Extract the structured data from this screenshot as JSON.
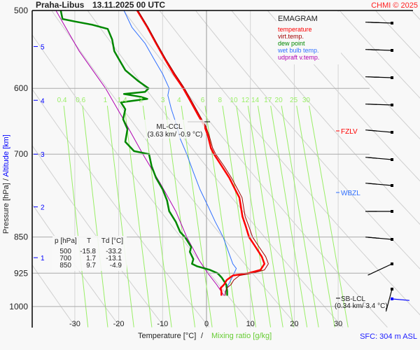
{
  "header": {
    "station": "Praha-Libus",
    "datetime": "13.11.2025 00 UTC",
    "copyright": "CHMI © 2025"
  },
  "footer": {
    "sfc": "SFC: 304 m ASL"
  },
  "colors": {
    "temperature": "#ff0000",
    "virt_temp": "#a00000",
    "dew_point": "#008800",
    "wet_bulb": "#3070ff",
    "parcel": "#b000b0",
    "mixing": "#99ee66",
    "altitude": "#0000ff"
  },
  "chart_data": {
    "type": "line",
    "title": "EMAGRAM",
    "xlabel": "Temperature [°C]",
    "xlabel_sep": "/",
    "xlabel2": "Mixing ratio [g/kg]",
    "ylabel": "Pressure [hPa]",
    "ylabel_sep": "/",
    "ylabel2": "Altitude [km]",
    "xlim": [
      -38,
      39
    ],
    "ylim": [
      1050,
      500
    ],
    "x_ticks": [
      "-30",
      "-20",
      "-10",
      "0",
      "10",
      "20",
      "30"
    ],
    "y_ticks": [
      "500",
      "600",
      "700",
      "850",
      "925",
      "1000"
    ],
    "altitude_ticks": [
      {
        "km": "1",
        "p": 892
      },
      {
        "km": "2",
        "p": 792
      },
      {
        "km": "3",
        "p": 700
      },
      {
        "km": "4",
        "p": 617
      },
      {
        "km": "5",
        "p": 544
      }
    ],
    "mixing_ratios": [
      "0.4",
      "0.6",
      "1",
      "1.4",
      "2",
      "3",
      "4",
      "6",
      "8",
      "10",
      "12",
      "14",
      "17",
      "20",
      "25",
      "30"
    ],
    "legend": [
      "temperature",
      "virt.temp.",
      "dew point",
      "wet bulb temp.",
      "udpraft v.temp."
    ],
    "series": [
      {
        "name": "temperature",
        "points": [
          [
            500,
            -15.8
          ],
          [
            520,
            -13.5
          ],
          [
            540,
            -11.5
          ],
          [
            560,
            -9.5
          ],
          [
            580,
            -7.5
          ],
          [
            600,
            -5.3
          ],
          [
            620,
            -3.5
          ],
          [
            640,
            -1.8
          ],
          [
            655,
            -0.5
          ],
          [
            670,
            0.3
          ],
          [
            690,
            1
          ],
          [
            700,
            1.7
          ],
          [
            720,
            3.5
          ],
          [
            740,
            5.2
          ],
          [
            760,
            6.5
          ],
          [
            775,
            7.5
          ],
          [
            790,
            7.8
          ],
          [
            810,
            8.2
          ],
          [
            830,
            9
          ],
          [
            850,
            9.7
          ],
          [
            870,
            11.2
          ],
          [
            890,
            12.6
          ],
          [
            905,
            13.2
          ],
          [
            918,
            12.3
          ],
          [
            925,
            9.5
          ],
          [
            930,
            6
          ],
          [
            940,
            4.6
          ],
          [
            950,
            4
          ],
          [
            958,
            3.2
          ],
          [
            965,
            3.4
          ],
          [
            975,
            3.4
          ]
        ]
      },
      {
        "name": "virt.temp.",
        "points": [
          [
            500,
            -15.6
          ],
          [
            520,
            -13.3
          ],
          [
            540,
            -11.3
          ],
          [
            560,
            -9.3
          ],
          [
            580,
            -7.2
          ],
          [
            600,
            -5
          ],
          [
            620,
            -3.2
          ],
          [
            640,
            -1.5
          ],
          [
            655,
            -0.2
          ],
          [
            670,
            0.6
          ],
          [
            690,
            1.4
          ],
          [
            700,
            2.1
          ],
          [
            720,
            4
          ],
          [
            740,
            5.7
          ],
          [
            760,
            7.1
          ],
          [
            775,
            8.1
          ],
          [
            790,
            8.4
          ],
          [
            810,
            8.8
          ],
          [
            830,
            9.7
          ],
          [
            850,
            10.5
          ],
          [
            870,
            12
          ],
          [
            890,
            13.5
          ],
          [
            905,
            14.1
          ],
          [
            918,
            13.2
          ],
          [
            925,
            10.5
          ],
          [
            930,
            7.5
          ],
          [
            940,
            6.2
          ],
          [
            950,
            5.6
          ],
          [
            958,
            4.6
          ],
          [
            965,
            4.4
          ],
          [
            975,
            4.2
          ]
        ]
      },
      {
        "name": "dew point",
        "points": [
          [
            500,
            -33.2
          ],
          [
            510,
            -32.8
          ],
          [
            513,
            -30
          ],
          [
            517,
            -26
          ],
          [
            522,
            -22.5
          ],
          [
            535,
            -21.5
          ],
          [
            550,
            -21
          ],
          [
            560,
            -20
          ],
          [
            575,
            -18.5
          ],
          [
            590,
            -15.5
          ],
          [
            600,
            -13.2
          ],
          [
            605,
            -14
          ],
          [
            608,
            -18.8
          ],
          [
            612,
            -15
          ],
          [
            615,
            -13.5
          ],
          [
            620,
            -19.5
          ],
          [
            630,
            -18.5
          ],
          [
            645,
            -19
          ],
          [
            660,
            -18
          ],
          [
            680,
            -18.5
          ],
          [
            695,
            -16.5
          ],
          [
            700,
            -13.1
          ],
          [
            720,
            -12.5
          ],
          [
            740,
            -11.5
          ],
          [
            760,
            -10
          ],
          [
            780,
            -9
          ],
          [
            800,
            -8.5
          ],
          [
            820,
            -7
          ],
          [
            840,
            -6
          ],
          [
            850,
            -4.9
          ],
          [
            870,
            -3.5
          ],
          [
            880,
            -3.8
          ],
          [
            895,
            -3
          ],
          [
            905,
            -3.3
          ],
          [
            910,
            -2.2
          ],
          [
            918,
            0.8
          ],
          [
            925,
            2.5
          ],
          [
            935,
            3.5
          ],
          [
            950,
            4.5
          ],
          [
            965,
            4.7
          ],
          [
            975,
            4.7
          ]
        ]
      },
      {
        "name": "wet bulb temp.",
        "points": [
          [
            500,
            -18.8
          ],
          [
            520,
            -17
          ],
          [
            540,
            -14
          ],
          [
            560,
            -12
          ],
          [
            580,
            -10
          ],
          [
            600,
            -8.5
          ],
          [
            610,
            -8.8
          ],
          [
            630,
            -8
          ],
          [
            650,
            -7
          ],
          [
            675,
            -6
          ],
          [
            700,
            -4.5
          ],
          [
            730,
            -3
          ],
          [
            760,
            -1.5
          ],
          [
            790,
            0.3
          ],
          [
            820,
            2
          ],
          [
            850,
            3.8
          ],
          [
            880,
            5
          ],
          [
            905,
            6
          ],
          [
            915,
            6.8
          ],
          [
            925,
            6.3
          ],
          [
            935,
            5.8
          ],
          [
            950,
            5
          ],
          [
            965,
            4.3
          ],
          [
            975,
            4.2
          ]
        ]
      },
      {
        "name": "udpraft v.temp.",
        "points": [
          [
            500,
            -34.3
          ],
          [
            550,
            -29
          ],
          [
            600,
            -23
          ],
          [
            650,
            -18.5
          ],
          [
            700,
            -14.5
          ],
          [
            750,
            -10.5
          ],
          [
            800,
            -7
          ],
          [
            850,
            -4.5
          ],
          [
            900,
            -1.5
          ],
          [
            925,
            0.3
          ],
          [
            950,
            2.3
          ],
          [
            975,
            4
          ]
        ]
      }
    ],
    "annotations": [
      {
        "label": "ML-CCL",
        "detail": "(3.63 km/ -0.9 °C)",
        "p": 650,
        "t": -0.9
      },
      {
        "label": "FZLV",
        "p": 650
      },
      {
        "label": "WBZL",
        "p": 790
      },
      {
        "label": "SB-LCL",
        "detail": "(0.34 km/ 3.4 °C)",
        "p": 935
      }
    ],
    "table": {
      "headers": [
        "p [hPa]",
        "T",
        "Td [°C]"
      ],
      "rows": [
        [
          "500",
          "-15.8",
          "-33.2"
        ],
        [
          "700",
          "1.7",
          "-13.1"
        ],
        [
          "850",
          "9.7",
          "-4.9"
        ]
      ]
    },
    "wind": [
      {
        "p": 520,
        "dir": 272,
        "kt": 30
      },
      {
        "p": 555,
        "dir": 272,
        "kt": 30
      },
      {
        "p": 593,
        "dir": 272,
        "kt": 25
      },
      {
        "p": 632,
        "dir": 272,
        "kt": 20
      },
      {
        "p": 673,
        "dir": 275,
        "kt": 20
      },
      {
        "p": 716,
        "dir": 275,
        "kt": 20
      },
      {
        "p": 760,
        "dir": 275,
        "kt": 20
      },
      {
        "p": 805,
        "dir": 270,
        "kt": 20
      },
      {
        "p": 855,
        "dir": 275,
        "kt": 25
      },
      {
        "p": 902,
        "dir": 245,
        "kt": 10
      },
      {
        "p": 952,
        "dir": 195,
        "kt": 5
      }
    ],
    "surface_wind": {
      "dir": 95,
      "kt": 2
    }
  }
}
